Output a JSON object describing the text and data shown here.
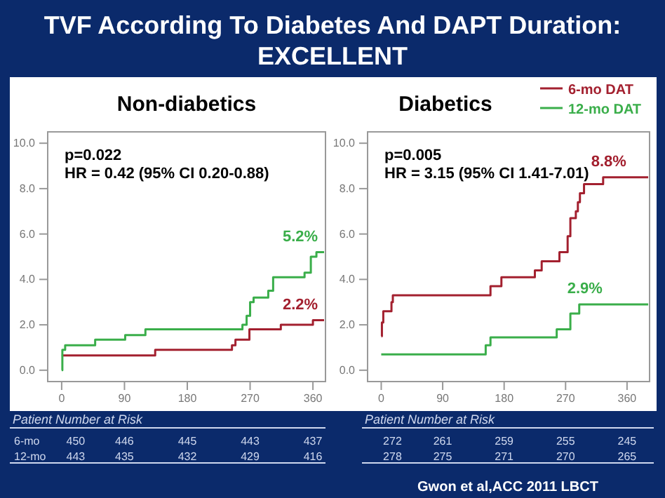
{
  "chart_data": [
    {
      "type": "step",
      "title": "TVF According To Diabetes And DAPT Duration: EXCELLENT",
      "subtitle": "Non-diabetics",
      "xlim": [
        -20,
        378
      ],
      "xticks": [
        0,
        90,
        180,
        270,
        360
      ],
      "ylim": [
        -0.5,
        10.5
      ],
      "yticks": [
        {
          "value": 0,
          "label": "0.0"
        },
        {
          "value": 2,
          "label": "2.0"
        },
        {
          "value": 4,
          "label": "4.0"
        },
        {
          "value": 6,
          "label": "6.0"
        },
        {
          "value": 8,
          "label": "8.0"
        },
        {
          "value": 10,
          "label": "10.0"
        }
      ],
      "series": [
        {
          "color": "#a3202f",
          "x": [
            0,
            134,
            244,
            249,
            269,
            314,
            360,
            376
          ],
          "values": [
            0.65,
            0.9,
            1.1,
            1.35,
            1.8,
            2.0,
            2.2,
            2.2
          ]
        },
        {
          "color": "#3aae4a",
          "x": [
            0,
            1,
            5,
            48,
            91,
            120,
            259,
            265,
            270,
            275,
            296,
            303,
            348,
            357,
            365,
            376
          ],
          "values": [
            0,
            0.9,
            1.1,
            1.35,
            1.55,
            1.8,
            2.0,
            2.4,
            3.0,
            3.2,
            3.5,
            4.1,
            4.3,
            5.0,
            5.2,
            5.2
          ]
        }
      ],
      "annotations": [
        "p=0.022",
        "HR = 0.42 (95% CI 0.20-0.88)",
        {
          "text": "5.2%",
          "x": 365,
          "y": 5.2
        },
        {
          "text": "2.2%",
          "x": 360,
          "y": 2.2
        },
        "Patient Number at Risk",
        "6-mo",
        "450",
        "446",
        "445",
        "443",
        "437",
        "12-mo",
        "443",
        "435",
        "432",
        "429",
        "416"
      ]
    },
    {
      "type": "step",
      "subtitle": "Diabetics",
      "xlim": [
        -20,
        393
      ],
      "xticks": [
        0,
        90,
        180,
        270,
        360
      ],
      "ylim": [
        -0.5,
        10.5
      ],
      "yticks": [
        {
          "value": 0,
          "label": "0.0"
        },
        {
          "value": 2,
          "label": "2.0"
        },
        {
          "value": 4,
          "label": "4.0"
        },
        {
          "value": 6,
          "label": "6.0"
        },
        {
          "value": 8,
          "label": "8.0"
        },
        {
          "value": 10,
          "label": "10.0"
        }
      ],
      "legend": "top right",
      "series": [
        {
          "name": "6-mo DAT",
          "color": "#a3202f",
          "x": [
            0,
            1,
            3,
            15,
            17,
            160,
            176,
            225,
            235,
            261,
            273,
            277,
            285,
            288,
            291,
            297,
            325,
            391
          ],
          "values": [
            1.5,
            2.1,
            2.6,
            3.0,
            3.3,
            3.7,
            4.1,
            4.4,
            4.8,
            5.2,
            5.9,
            6.7,
            7.0,
            7.4,
            7.8,
            8.2,
            8.5,
            8.5
          ]
        },
        {
          "name": "12-mo DAT",
          "color": "#3aae4a",
          "x": [
            0,
            153,
            160,
            257,
            277,
            290,
            391
          ],
          "values": [
            0.7,
            1.1,
            1.45,
            1.8,
            2.5,
            2.9,
            2.9
          ]
        }
      ],
      "annotations": [
        "p=0.005",
        "HR = 3.15 (95% CI 1.41-7.01)",
        {
          "text": "8.8%",
          "x": 325,
          "y": 8.5
        },
        {
          "text": "2.9%",
          "x": 290,
          "y": 2.9
        },
        "Patient Number at Risk",
        "272",
        "261",
        "259",
        "255",
        "245",
        "278",
        "275",
        "271",
        "270",
        "265",
        "Gwon et al,ACC 2011 LBCT"
      ]
    }
  ]
}
